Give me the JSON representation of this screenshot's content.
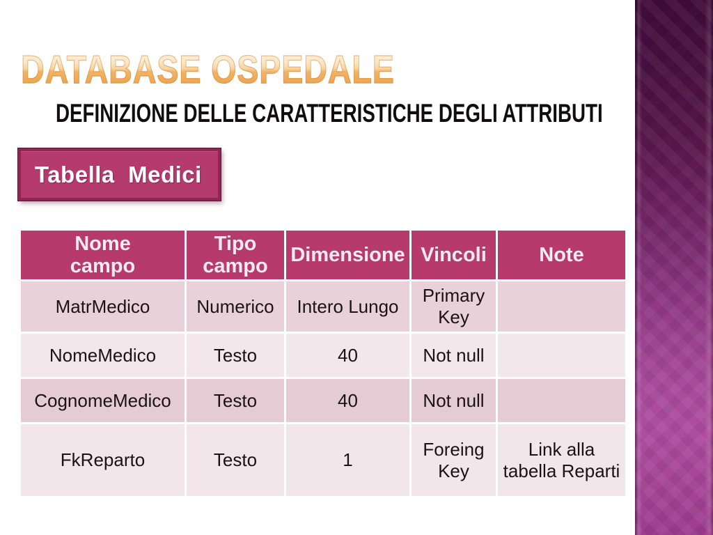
{
  "slide": {
    "title": "DATABASE OSPEDALE",
    "subtitle": "DEFINIZIONE DELLE CARATTERISTICHE DEGLI ATTRIBUTI",
    "table_label": "Tabella  Medici"
  },
  "table": {
    "columns": [
      "Nome\ncampo",
      "Tipo\ncampo",
      "Dimensione",
      "Vincoli",
      "Note"
    ],
    "rows": [
      {
        "cells": [
          "MatrMedico",
          "Numerico",
          "Intero Lungo",
          "Primary Key",
          ""
        ]
      },
      {
        "cells": [
          "NomeMedico",
          "Testo",
          "40",
          "Not null",
          ""
        ]
      },
      {
        "cells": [
          "CognomeMedico",
          "Testo",
          "40",
          "Not null",
          ""
        ]
      },
      {
        "cells": [
          "FkReparto",
          "Testo",
          "1",
          "Foreing Key",
          "Link alla tabella Reparti"
        ]
      }
    ]
  },
  "colors": {
    "accent_magenta": "#b63a6c",
    "box_border": "#8f2653",
    "row_dark_pink": "#e8d1d8",
    "row_light_pink": "#f4e7eb",
    "title_gradient_top": "#fdf4e8",
    "title_gradient_bottom": "#eea24c",
    "band_top": "#400b3a",
    "band_bright": "#ae4ca0",
    "header_text": "#f9e9f0",
    "body_text": "#1a1216"
  }
}
